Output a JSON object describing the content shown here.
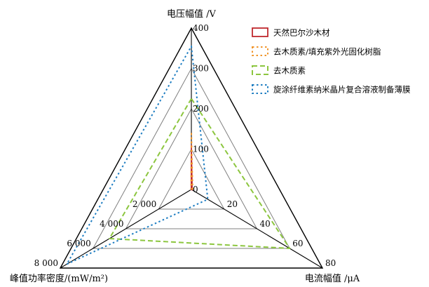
{
  "chart_data": {
    "type": "radar",
    "axes": [
      {
        "label": "电压幅值 /V",
        "max": 400,
        "ticks": [
          "0",
          "100",
          "200",
          "300",
          "400"
        ],
        "tick_values": [
          0,
          100,
          200,
          300,
          400
        ]
      },
      {
        "label": "电流幅值 /μA",
        "max": 80,
        "ticks": [
          "20",
          "40",
          "60",
          "80"
        ],
        "tick_values": [
          20,
          40,
          60,
          80
        ]
      },
      {
        "label": "峰值功率密度/(mW/m²)",
        "max": 8000,
        "ticks": [
          "2 000",
          "4 000",
          "6 000",
          "8 000"
        ],
        "tick_values": [
          2000,
          4000,
          6000,
          8000
        ]
      }
    ],
    "series": [
      {
        "name": "天然巴尔沙木材",
        "color": "#c0282d",
        "style": "solid",
        "values": [
          110,
          0.5,
          10
        ]
      },
      {
        "name": "去木质素/填充紫外光固化树脂",
        "color": "#f0962d",
        "style": "dotted",
        "values": [
          140,
          0.8,
          20
        ]
      },
      {
        "name": "去木质素",
        "color": "#8cc63f",
        "style": "dashed",
        "values": [
          225,
          60,
          5000
        ]
      },
      {
        "name": "旋涂纤维素纳米晶片复合溶液制备薄膜",
        "color": "#1f7ec2",
        "style": "dotted",
        "values": [
          355,
          10,
          7600
        ]
      }
    ],
    "legend_position": "top-right",
    "grid": true
  }
}
